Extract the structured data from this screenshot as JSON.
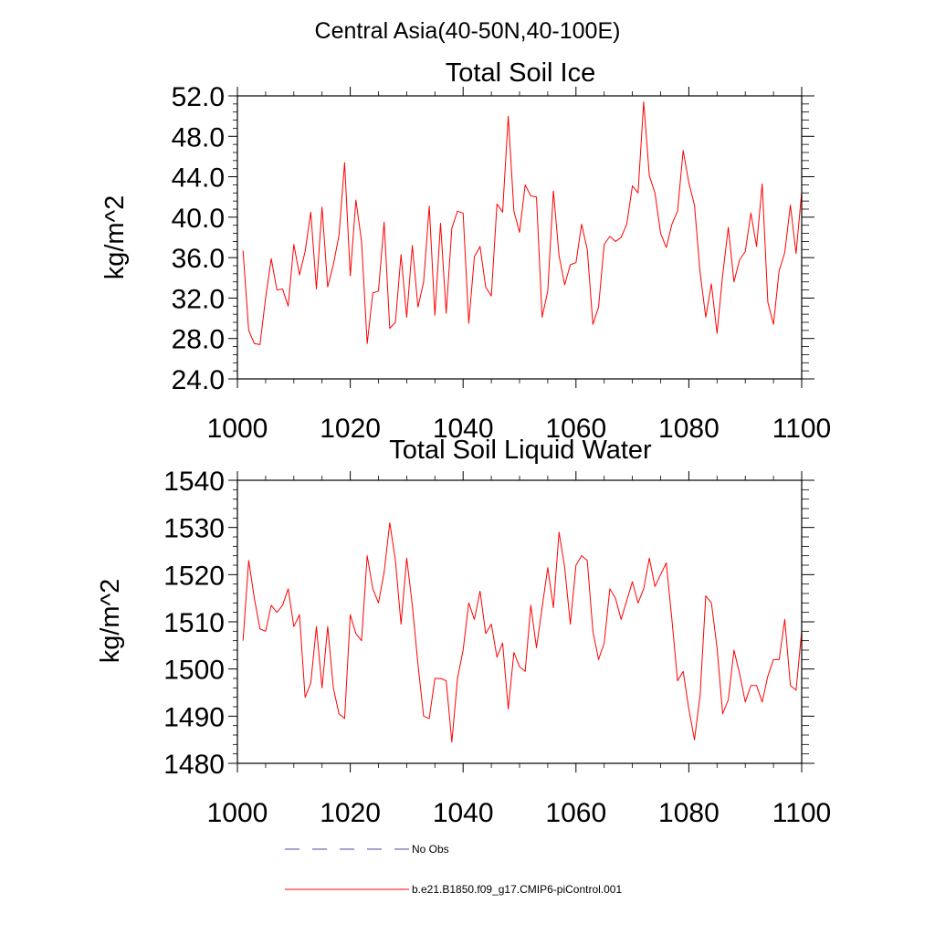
{
  "suptitle": "Central Asia(40-50N,40-100E)",
  "chart_data": [
    {
      "type": "line",
      "title": "Total Soil Ice",
      "ylabel": "kg/m^2",
      "xlabel": "",
      "xlim": [
        1000,
        1100
      ],
      "ylim": [
        24,
        52
      ],
      "xticks": [
        1000,
        1020,
        1040,
        1060,
        1080,
        1100
      ],
      "yticks": [
        24,
        28,
        32,
        36,
        40,
        44,
        48,
        52
      ],
      "ytick_labels": [
        "24.0",
        "28.0",
        "32.0",
        "36.0",
        "40.0",
        "44.0",
        "48.0",
        "52.0"
      ],
      "series": [
        {
          "name": "b.e21.B1850.f09_g17.CMIP6-piControl.001",
          "color": "#ff0000",
          "x_start": 1001,
          "values": [
            36.7,
            28.8,
            27.5,
            27.4,
            32.0,
            35.9,
            32.8,
            32.9,
            31.2,
            37.3,
            34.3,
            36.6,
            40.5,
            32.9,
            41.0,
            33.1,
            35.3,
            38.2,
            45.4,
            34.2,
            41.7,
            37.6,
            27.5,
            32.5,
            32.7,
            39.5,
            29.0,
            29.6,
            36.3,
            30.1,
            37.2,
            31.1,
            33.6,
            41.1,
            30.3,
            39.4,
            30.5,
            38.9,
            40.6,
            40.4,
            29.5,
            36.1,
            37.1,
            33.1,
            32.2,
            41.3,
            40.5,
            50.0,
            40.6,
            38.5,
            43.2,
            42.1,
            42.0,
            30.1,
            32.7,
            42.6,
            36.2,
            33.3,
            35.3,
            35.5,
            39.3,
            36.8,
            29.4,
            31.1,
            37.3,
            38.1,
            37.6,
            38.0,
            39.3,
            43.1,
            42.4,
            51.4,
            44.1,
            42.4,
            38.4,
            37.0,
            39.3,
            40.6,
            46.6,
            43.4,
            41.2,
            34.5,
            30.1,
            33.4,
            28.5,
            34.3,
            39.0,
            33.6,
            35.8,
            36.6,
            40.4,
            37.1,
            43.3,
            31.6,
            29.4,
            34.7,
            36.5,
            41.2,
            36.4,
            42.5
          ]
        }
      ]
    },
    {
      "type": "line",
      "title": "Total Soil Liquid Water",
      "ylabel": "kg/m^2",
      "xlabel": "",
      "xlim": [
        1000,
        1100
      ],
      "ylim": [
        1480,
        1540
      ],
      "xticks": [
        1000,
        1020,
        1040,
        1060,
        1080,
        1100
      ],
      "yticks": [
        1480,
        1490,
        1500,
        1510,
        1520,
        1530,
        1540
      ],
      "ytick_labels": [
        "1480",
        "1490",
        "1500",
        "1510",
        "1520",
        "1530",
        "1540"
      ],
      "series": [
        {
          "name": "b.e21.B1850.f09_g17.CMIP6-piControl.001",
          "color": "#ff0000",
          "x_start": 1001,
          "values": [
            1506,
            1523,
            1515,
            1508.5,
            1508,
            1513.5,
            1512,
            1513.5,
            1517,
            1509,
            1511.5,
            1494,
            1497,
            1509,
            1496,
            1509,
            1496,
            1490.5,
            1489.5,
            1511.5,
            1507.5,
            1506,
            1524,
            1517,
            1514,
            1520.5,
            1531,
            1523,
            1509.5,
            1523.5,
            1513.5,
            1501,
            1490,
            1489.5,
            1498,
            1498,
            1497.5,
            1484.5,
            1498,
            1504,
            1514,
            1510.5,
            1516.5,
            1507.5,
            1509.5,
            1502.5,
            1505.5,
            1491.5,
            1503.5,
            1500.5,
            1499.5,
            1513.5,
            1504.5,
            1513,
            1521.5,
            1513,
            1529,
            1521.5,
            1509.5,
            1522,
            1524,
            1523,
            1508,
            1502,
            1505.5,
            1517,
            1515,
            1510.5,
            1514.5,
            1518.5,
            1514,
            1517,
            1523.5,
            1517.5,
            1520,
            1522.5,
            1510.5,
            1497.5,
            1499.5,
            1491.5,
            1485,
            1494.5,
            1515.5,
            1514,
            1504.5,
            1490.5,
            1493.5,
            1504,
            1499,
            1493,
            1496.5,
            1496.5,
            1493,
            1498.5,
            1502,
            1502,
            1510.5,
            1496.5,
            1495.5,
            1508
          ]
        }
      ]
    }
  ],
  "legend": [
    {
      "label": "No Obs",
      "color": "#4a4aa0",
      "style": "dashed"
    },
    {
      "label": "b.e21.B1850.f09_g17.CMIP6-piControl.001",
      "color": "#ff0000",
      "style": "solid"
    }
  ]
}
